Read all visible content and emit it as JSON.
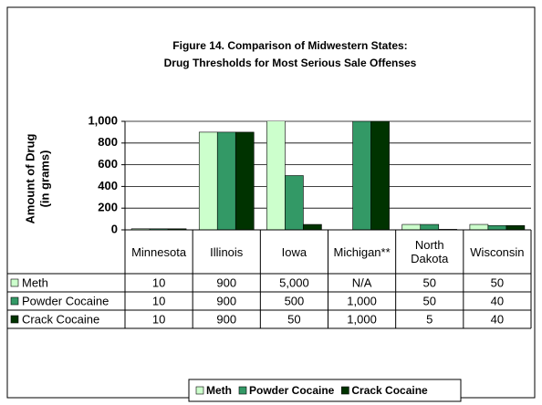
{
  "chart_data": {
    "type": "bar",
    "title": [
      "Figure 14.  Comparison of Midwestern States:",
      "Drug Thresholds for Most Serious Sale Offenses"
    ],
    "ylabel": [
      "Amount of Drug",
      "(in grams)"
    ],
    "categories": [
      "Minnesota",
      "Illinois",
      "Iowa",
      "Michigan**",
      "North Dakota",
      "Wisconsin"
    ],
    "series": [
      {
        "name": "Meth",
        "color": "#ccffcc",
        "values": [
          10,
          900,
          5000,
          null,
          50,
          50
        ],
        "value_labels": [
          "10",
          "900",
          "5,000",
          "N/A",
          "50",
          "50"
        ]
      },
      {
        "name": "Powder Cocaine",
        "color": "#339966",
        "values": [
          10,
          900,
          500,
          1000,
          50,
          40
        ],
        "value_labels": [
          "10",
          "900",
          "500",
          "1,000",
          "50",
          "40"
        ]
      },
      {
        "name": "Crack Cocaine",
        "color": "#003300",
        "values": [
          10,
          900,
          50,
          1000,
          5,
          40
        ],
        "value_labels": [
          "10",
          "900",
          "50",
          "1,000",
          "5",
          "40"
        ]
      }
    ],
    "ylim": [
      0,
      1000
    ],
    "yticks": [
      0,
      200,
      400,
      600,
      800,
      {
        "value": 1000,
        "label": "1,000"
      }
    ],
    "grid": true,
    "legend": "bottom"
  }
}
